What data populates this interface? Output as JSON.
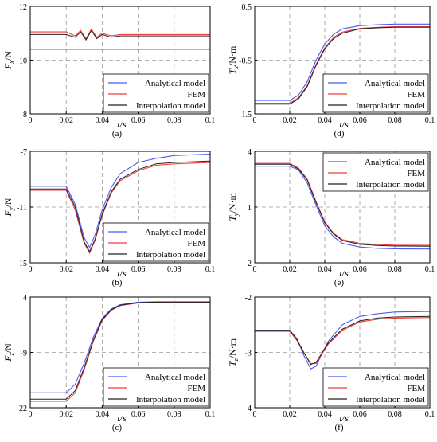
{
  "colors": {
    "analytical": "#4a5bf0",
    "fem": "#f03c3c",
    "interpolation": "#222222",
    "grid": "#9a9a9a"
  },
  "legend_labels": [
    "Analytical model",
    "FEM",
    "Interpolation model"
  ],
  "chart_data": [
    {
      "type": "line",
      "caption": "(a)",
      "ylabel": "F_x/N",
      "xlabel": "t/s",
      "xlim": [
        0,
        0.1
      ],
      "ylim": [
        8,
        12
      ],
      "xticks": [
        "0",
        "0.02",
        "0.04",
        "0.06",
        "0.08",
        "0.1"
      ],
      "yticks": [
        "8",
        "10",
        "12"
      ],
      "legend_position": "bottom-right",
      "x": [
        0,
        0.02,
        0.025,
        0.028,
        0.031,
        0.034,
        0.037,
        0.04,
        0.045,
        0.05,
        0.06,
        0.07,
        0.08,
        0.1
      ],
      "series": [
        {
          "name": "Analytical model",
          "values": [
            10.4,
            10.4,
            10.4,
            10.4,
            10.4,
            10.4,
            10.4,
            10.4,
            10.4,
            10.4,
            10.4,
            10.4,
            10.4,
            10.4
          ]
        },
        {
          "name": "FEM",
          "values": [
            11.05,
            11.05,
            10.9,
            11.1,
            10.8,
            11.15,
            10.85,
            11.0,
            10.9,
            10.95,
            10.95,
            10.95,
            10.95,
            10.95
          ]
        },
        {
          "name": "Interpolation model",
          "values": [
            10.95,
            10.95,
            10.85,
            11.05,
            10.75,
            11.1,
            10.8,
            10.95,
            10.85,
            10.9,
            10.9,
            10.9,
            10.9,
            10.9
          ]
        }
      ]
    },
    {
      "type": "line",
      "caption": "(d)",
      "ylabel": "T_x/N·m",
      "xlabel": "t/s",
      "xlim": [
        0,
        0.1
      ],
      "ylim": [
        -1.5,
        0.5
      ],
      "xticks": [
        "0",
        "0.02",
        "0.04",
        "0.06",
        "0.08",
        "0.1"
      ],
      "yticks": [
        "-1.5",
        "-0.5",
        "0.5"
      ],
      "legend_position": "bottom-right",
      "x": [
        0,
        0.02,
        0.025,
        0.03,
        0.035,
        0.04,
        0.045,
        0.05,
        0.06,
        0.07,
        0.08,
        0.1
      ],
      "series": [
        {
          "name": "Analytical model",
          "values": [
            -1.25,
            -1.25,
            -1.15,
            -0.9,
            -0.5,
            -0.2,
            -0.02,
            0.08,
            0.14,
            0.16,
            0.17,
            0.17
          ]
        },
        {
          "name": "FEM",
          "values": [
            -1.3,
            -1.3,
            -1.2,
            -0.97,
            -0.58,
            -0.27,
            -0.08,
            0.02,
            0.09,
            0.11,
            0.12,
            0.12
          ]
        },
        {
          "name": "Interpolation model",
          "values": [
            -1.32,
            -1.32,
            -1.22,
            -0.99,
            -0.6,
            -0.29,
            -0.1,
            0.0,
            0.08,
            0.1,
            0.11,
            0.11
          ]
        }
      ]
    },
    {
      "type": "line",
      "caption": "(b)",
      "ylabel": "F_y/N",
      "xlabel": "t/s",
      "xlim": [
        0,
        0.1
      ],
      "ylim": [
        -15,
        -7
      ],
      "xticks": [
        "0",
        "0.02",
        "0.04",
        "0.06",
        "0.08",
        "0.1"
      ],
      "yticks": [
        "-15",
        "-11",
        "-7"
      ],
      "legend_position": "bottom-right",
      "x": [
        0,
        0.02,
        0.025,
        0.03,
        0.033,
        0.036,
        0.04,
        0.045,
        0.05,
        0.06,
        0.07,
        0.08,
        0.1
      ],
      "series": [
        {
          "name": "Analytical model",
          "values": [
            -9.5,
            -9.5,
            -10.8,
            -13.2,
            -13.9,
            -13.0,
            -11.2,
            -9.6,
            -8.6,
            -7.8,
            -7.5,
            -7.3,
            -7.2
          ]
        },
        {
          "name": "FEM",
          "values": [
            -9.8,
            -9.8,
            -11.2,
            -13.6,
            -14.3,
            -13.4,
            -11.6,
            -10.0,
            -9.1,
            -8.4,
            -8.0,
            -7.9,
            -7.8
          ]
        },
        {
          "name": "Interpolation model",
          "values": [
            -9.7,
            -9.7,
            -11.0,
            -13.5,
            -14.2,
            -13.3,
            -11.5,
            -9.9,
            -9.0,
            -8.3,
            -7.9,
            -7.8,
            -7.7
          ]
        }
      ]
    },
    {
      "type": "line",
      "caption": "(e)",
      "ylabel": "T_y/N·m",
      "xlabel": "t/s",
      "xlim": [
        0,
        0.1
      ],
      "ylim": [
        -2,
        4
      ],
      "xticks": [
        "0",
        "0.02",
        "0.04",
        "0.06",
        "0.08",
        "0.1"
      ],
      "yticks": [
        "-2",
        "1",
        "4"
      ],
      "legend_position": "top-right",
      "x": [
        0,
        0.02,
        0.025,
        0.03,
        0.035,
        0.04,
        0.045,
        0.05,
        0.06,
        0.07,
        0.08,
        0.1
      ],
      "series": [
        {
          "name": "Analytical model",
          "values": [
            3.2,
            3.2,
            3.0,
            2.3,
            1.1,
            0.0,
            -0.6,
            -0.95,
            -1.15,
            -1.22,
            -1.25,
            -1.26
          ]
        },
        {
          "name": "FEM",
          "values": [
            3.35,
            3.35,
            3.1,
            2.5,
            1.3,
            0.2,
            -0.4,
            -0.75,
            -0.95,
            -1.02,
            -1.05,
            -1.06
          ]
        },
        {
          "name": "Interpolation model",
          "values": [
            3.3,
            3.3,
            3.05,
            2.45,
            1.25,
            0.15,
            -0.45,
            -0.8,
            -1.0,
            -1.07,
            -1.1,
            -1.11
          ]
        }
      ]
    },
    {
      "type": "line",
      "caption": "(c)",
      "ylabel": "F_z/N",
      "xlabel": "t/s",
      "xlim": [
        0,
        0.1
      ],
      "ylim": [
        -22,
        4
      ],
      "xticks": [
        "0",
        "0.02",
        "0.04",
        "0.06",
        "0.08",
        "0.1"
      ],
      "yticks": [
        "-22",
        "-9",
        "4"
      ],
      "legend_position": "bottom-right",
      "x": [
        0,
        0.02,
        0.025,
        0.03,
        0.035,
        0.04,
        0.045,
        0.05,
        0.06,
        0.07,
        0.08,
        0.1
      ],
      "series": [
        {
          "name": "Analytical model",
          "values": [
            -18.5,
            -18.5,
            -16.5,
            -11.5,
            -5.5,
            -1.0,
            1.2,
            2.2,
            2.8,
            2.9,
            2.9,
            2.9
          ]
        },
        {
          "name": "FEM",
          "values": [
            -20.5,
            -20.5,
            -18.5,
            -13.0,
            -6.5,
            -1.5,
            0.9,
            2.0,
            2.6,
            2.7,
            2.7,
            2.7
          ]
        },
        {
          "name": "Interpolation model",
          "values": [
            -20.0,
            -20.0,
            -18.0,
            -12.6,
            -6.2,
            -1.3,
            1.0,
            2.1,
            2.7,
            2.8,
            2.8,
            2.8
          ]
        }
      ]
    },
    {
      "type": "line",
      "caption": "(f)",
      "ylabel": "T_z/N·m",
      "xlabel": "t/s",
      "xlim": [
        0,
        0.1
      ],
      "ylim": [
        -4,
        -2
      ],
      "xticks": [
        "0",
        "0.02",
        "0.04",
        "0.06",
        "0.08",
        "0.1"
      ],
      "yticks": [
        "-4",
        "-3",
        "-2"
      ],
      "legend_position": "bottom-right",
      "x": [
        0,
        0.02,
        0.024,
        0.028,
        0.032,
        0.035,
        0.038,
        0.042,
        0.05,
        0.06,
        0.07,
        0.08,
        0.1
      ],
      "series": [
        {
          "name": "Analytical model",
          "values": [
            -2.6,
            -2.6,
            -2.75,
            -3.05,
            -3.3,
            -3.25,
            -3.05,
            -2.8,
            -2.5,
            -2.35,
            -2.3,
            -2.27,
            -2.26
          ]
        },
        {
          "name": "FEM",
          "values": [
            -2.62,
            -2.62,
            -2.78,
            -3.0,
            -3.2,
            -3.2,
            -3.05,
            -2.85,
            -2.6,
            -2.45,
            -2.4,
            -2.38,
            -2.37
          ]
        },
        {
          "name": "Interpolation model",
          "values": [
            -2.6,
            -2.6,
            -2.76,
            -3.0,
            -3.22,
            -3.18,
            -3.03,
            -2.83,
            -2.58,
            -2.43,
            -2.38,
            -2.36,
            -2.35
          ]
        }
      ]
    }
  ]
}
